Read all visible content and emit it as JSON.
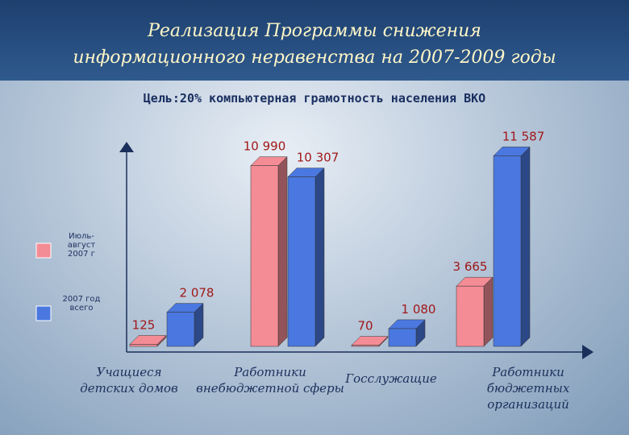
{
  "chart_data": {
    "type": "bar3d",
    "title": "Реализация Программы снижения информационного неравенства на 2007-2009 годы",
    "subtitle": "Цель:20% компьютерная грамотность населения ВКО",
    "categories": [
      "Учащиеся\nдетских домов",
      "Работники\nвнебюджетной сферы",
      "Госслужащие",
      "Работники\nбюджетных\nорганизаций"
    ],
    "series": [
      {
        "name": "Июль-август 2007 г",
        "color": "#f48c96",
        "values": [
          125,
          10990,
          70,
          3665
        ],
        "value_labels": [
          "125",
          "10 990",
          "70",
          "3 665"
        ]
      },
      {
        "name": "2007 год всего",
        "color": "#4a78e0",
        "values": [
          2078,
          10307,
          1080,
          11587
        ],
        "value_labels": [
          "2 078",
          "10 307",
          "1 080",
          "11 587"
        ]
      }
    ],
    "ylim": [
      0,
      12000
    ],
    "legend": "left"
  }
}
